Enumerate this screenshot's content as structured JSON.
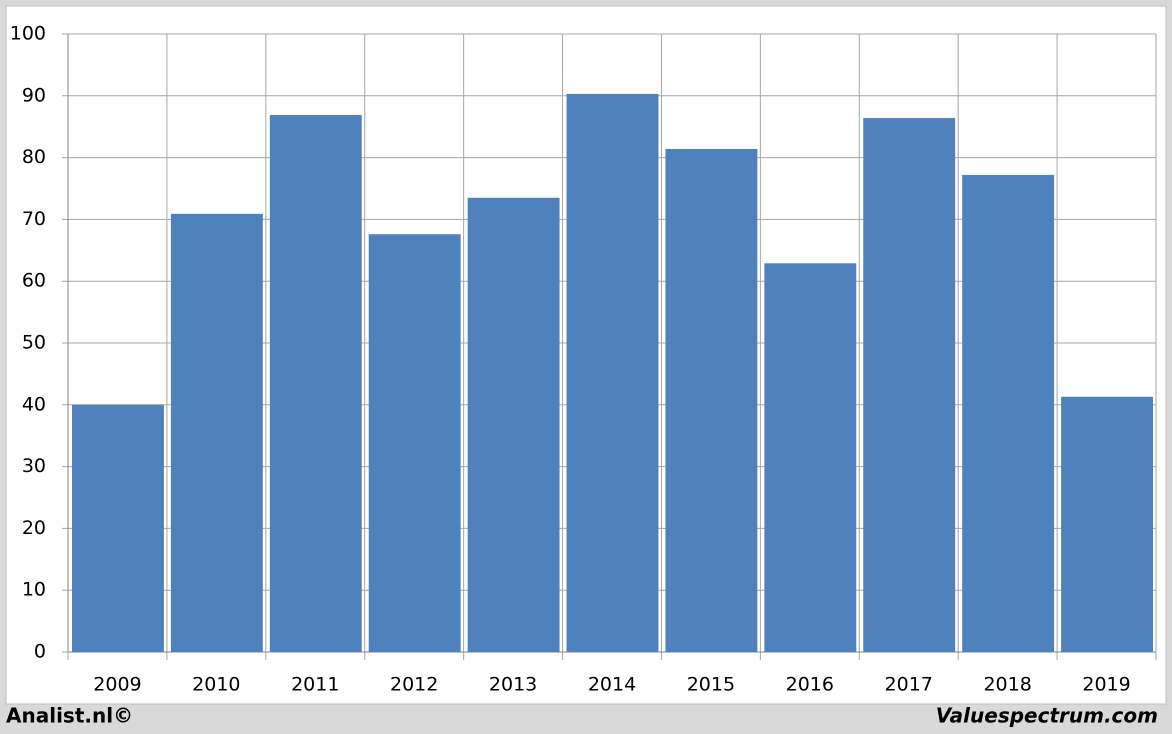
{
  "chart_data": {
    "type": "bar",
    "categories": [
      "2009",
      "2010",
      "2011",
      "2012",
      "2013",
      "2014",
      "2015",
      "2016",
      "2017",
      "2018",
      "2019"
    ],
    "values": [
      40.0,
      70.9,
      86.9,
      67.6,
      73.5,
      90.3,
      81.4,
      62.9,
      86.4,
      77.2,
      41.3
    ],
    "color": "#4f81bd",
    "ylim": [
      0,
      100
    ],
    "yticks": [
      0,
      10,
      20,
      30,
      40,
      50,
      60,
      70,
      80,
      90,
      100
    ],
    "grid": true,
    "footer_left": "Analist.nl©",
    "footer_right": "Valuespectrum.com"
  }
}
